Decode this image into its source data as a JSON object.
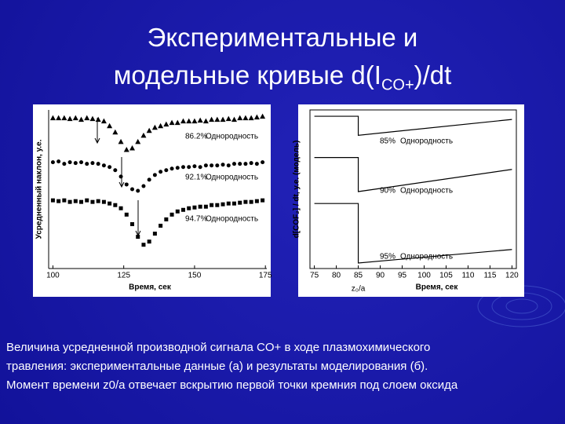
{
  "slide": {
    "title_line1": "Экспериментальные и",
    "title_line2": {
      "before": "модельные кривые d(I",
      "sub": "CO+",
      "after": ")/dt"
    },
    "caption": [
      "Величина усредненной производной сигнала CO+ в ходе плазмохимического",
      "травления: экспериментальные данные (а) и результаты моделирования (б).",
      "Момент времени z0/a отвечает вскрытию первой точки кремния под слоем оксида"
    ]
  },
  "chart_data": [
    {
      "type": "scatter",
      "xlabel": "Время, сек",
      "ylabel": "Усредненный наклон, у.е.",
      "xlim": [
        98.5,
        175.5
      ],
      "xticks": [
        100,
        125,
        150,
        175
      ],
      "ylim": [
        0,
        100
      ],
      "color": "#000000",
      "x": [
        100,
        102,
        104,
        106,
        108,
        110,
        112,
        114,
        116,
        118,
        120,
        122,
        124,
        126,
        128,
        130,
        132,
        134,
        136,
        138,
        140,
        142,
        144,
        146,
        148,
        150,
        152,
        154,
        156,
        158,
        160,
        162,
        164,
        166,
        168,
        170,
        172,
        174
      ],
      "series": [
        {
          "marker": "triangle",
          "values": [
            95,
            95,
            95,
            94.5,
            95,
            94,
            95,
            94.5,
            94,
            93,
            90,
            86,
            80,
            75,
            76,
            80,
            84,
            87,
            89,
            90,
            91,
            92,
            92,
            93,
            93,
            93,
            93.5,
            93,
            94,
            94,
            94,
            94.5,
            94,
            95,
            95,
            95,
            95.5,
            96
          ]
        },
        {
          "marker": "circle",
          "values": [
            67,
            67.5,
            66,
            67,
            66.5,
            67,
            66,
            66.5,
            66,
            65,
            64,
            62,
            58,
            53,
            50,
            49,
            52,
            56,
            59,
            61,
            62,
            63,
            63.5,
            64,
            64,
            64.5,
            64,
            65,
            65,
            65,
            65.5,
            65,
            66,
            66,
            66,
            66.5,
            66,
            67
          ]
        },
        {
          "marker": "square",
          "values": [
            43,
            42.5,
            43,
            42,
            42.5,
            42,
            43,
            42,
            42.5,
            42,
            41,
            40,
            38,
            34,
            28,
            20,
            15,
            17,
            22,
            27,
            31,
            34,
            36,
            37,
            38,
            38.5,
            39,
            39,
            40,
            40,
            40.5,
            41,
            41,
            41.5,
            42,
            42,
            42.5,
            43
          ]
        }
      ],
      "annotations": [
        {
          "text": "86.2%",
          "note": "Однородность"
        },
        {
          "text": "92.1%",
          "note": "Однородность"
        },
        {
          "text": "94.7%",
          "note": "Однородность"
        }
      ]
    },
    {
      "type": "line",
      "xlabel": "Время, сек",
      "ylabel": "d[COF₂] / dt, у.е. (модель)",
      "marker_label": "z₀/a",
      "xlim": [
        74,
        121
      ],
      "xticks": [
        75,
        80,
        85,
        90,
        95,
        100,
        105,
        110,
        115,
        120
      ],
      "ylim": [
        0,
        100
      ],
      "color": "#000000",
      "x": [
        75,
        85,
        85,
        120
      ],
      "series": [
        {
          "values": [
            96,
            96,
            84,
            94
          ]
        },
        {
          "values": [
            70,
            70,
            48.5,
            62.5
          ]
        },
        {
          "values": [
            41,
            41,
            3.5,
            12
          ]
        }
      ],
      "annotations": [
        {
          "text": "85%",
          "note": "Однородность"
        },
        {
          "text": "90%",
          "note": "Однородность"
        },
        {
          "text": "95%",
          "note": "Однородность"
        }
      ]
    }
  ]
}
